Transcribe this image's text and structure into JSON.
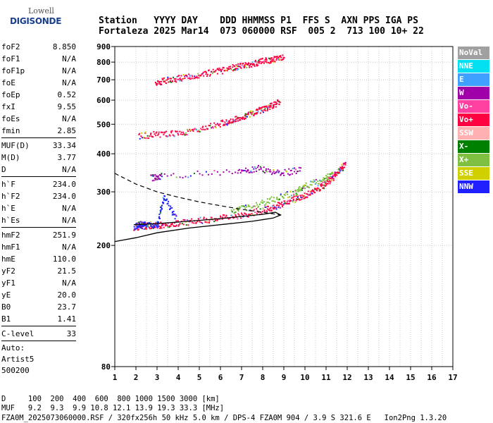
{
  "logo": {
    "line1": "Lowell",
    "line2": "DIGISONDE"
  },
  "header": {
    "labels": "Station   YYYY DAY    DDD HHMMSS P1  FFS S  AXN PPS IGA PS",
    "values": "Fortaleza 2025 Mar14  073 060000 RSF  005 2  713 100 10+ 22"
  },
  "params": {
    "group1": [
      {
        "label": "foF2",
        "value": "8.850"
      },
      {
        "label": "foF1",
        "value": "N/A"
      },
      {
        "label": "foF1p",
        "value": "N/A"
      },
      {
        "label": "foE",
        "value": "N/A"
      },
      {
        "label": "foEp",
        "value": "0.52"
      },
      {
        "label": "fxI",
        "value": "9.55"
      },
      {
        "label": "foEs",
        "value": "N/A"
      },
      {
        "label": "fmin",
        "value": "2.85"
      }
    ],
    "group2": [
      {
        "label": "MUF(D)",
        "value": "33.34"
      },
      {
        "label": "M(D)",
        "value": "3.77"
      },
      {
        "label": "D",
        "value": "N/A"
      }
    ],
    "group3": [
      {
        "label": "h`F",
        "value": "234.0"
      },
      {
        "label": "h`F2",
        "value": "234.0"
      },
      {
        "label": "h`E",
        "value": "N/A"
      },
      {
        "label": "h`Es",
        "value": "N/A"
      }
    ],
    "group4": [
      {
        "label": "hmF2",
        "value": "251.9"
      },
      {
        "label": "hmF1",
        "value": "N/A"
      },
      {
        "label": "hmE",
        "value": "110.0"
      },
      {
        "label": "yF2",
        "value": "21.5"
      },
      {
        "label": "yF1",
        "value": "N/A"
      },
      {
        "label": "yE",
        "value": "20.0"
      },
      {
        "label": "B0",
        "value": "23.7"
      },
      {
        "label": "B1",
        "value": "1.41"
      }
    ],
    "group5": [
      {
        "label": "C-level",
        "value": "33"
      }
    ],
    "auto_label": "Auto:",
    "auto_program": "Artist5",
    "auto_version": "500200"
  },
  "legend": [
    {
      "label": "NoVal",
      "color": "#a0a0a0"
    },
    {
      "label": "NNE",
      "color": "#00e0f0"
    },
    {
      "label": "E",
      "color": "#3fa0ff"
    },
    {
      "label": "W",
      "color": "#a000a8"
    },
    {
      "label": "Vo-",
      "color": "#ff40a0"
    },
    {
      "label": "Vo+",
      "color": "#ff0040"
    },
    {
      "label": "SSW",
      "color": "#ffb0b0"
    },
    {
      "label": "X-",
      "color": "#008000"
    },
    {
      "label": "X+",
      "color": "#80c040"
    },
    {
      "label": "SSE",
      "color": "#d0d000"
    },
    {
      "label": "NNW",
      "color": "#2020ff"
    }
  ],
  "footer": {
    "d_line": "D     100  200  400  600  800 1000 1500 3000 [km]",
    "muf_line": "MUF   9.2  9.3  9.9 10.8 12.1 13.9 19.3 33.3 [MHz]",
    "file_line": "FZA0M_2025073060000.RSF / 320fx256h 50 kHz 5.0 km / DPS-4 FZA0M 904 / 3.9 S 321.6 E   Ion2Png 1.3.20"
  },
  "chart_data": {
    "type": "scatter",
    "x_ticks": [
      "1",
      "2",
      "3",
      "4",
      "5",
      "6",
      "7",
      "8",
      "9",
      "10",
      "11",
      "12",
      "13",
      "14",
      "15",
      "16",
      "17"
    ],
    "y_ticks": [
      {
        "value": 900,
        "label": "900"
      },
      {
        "value": 800,
        "label": "800"
      },
      {
        "value": 700,
        "label": "700"
      },
      {
        "value": 600,
        "label": "600"
      },
      {
        "value": 500,
        "label": "500"
      },
      {
        "value": 400,
        "label": "400"
      },
      {
        "value": 300,
        "label": "300"
      },
      {
        "value": 200,
        "label": "200"
      },
      {
        "value": 80,
        "label": "80"
      }
    ],
    "xlim": [
      1,
      17
    ],
    "ylim": [
      80,
      900
    ],
    "y_scale": "log",
    "grid": true,
    "traces": [
      {
        "name": "F2 o-trace",
        "color": "#ff0040",
        "points": [
          [
            1.9,
            230
          ],
          [
            2.3,
            232
          ],
          [
            2.8,
            233
          ],
          [
            3.3,
            235
          ],
          [
            4.0,
            238
          ],
          [
            5.0,
            242
          ],
          [
            6.0,
            247
          ],
          [
            7.0,
            253
          ],
          [
            8.0,
            262
          ],
          [
            8.6,
            270
          ],
          [
            9.2,
            280
          ],
          [
            9.8,
            290
          ],
          [
            10.3,
            300
          ],
          [
            10.8,
            315
          ],
          [
            11.2,
            330
          ],
          [
            11.6,
            355
          ],
          [
            11.9,
            370
          ]
        ]
      },
      {
        "name": "F2 o-trace 2nd hop",
        "color": "#ff0040",
        "points": [
          [
            2.1,
            460
          ],
          [
            3.0,
            465
          ],
          [
            4.0,
            470
          ],
          [
            5.0,
            485
          ],
          [
            6.0,
            505
          ],
          [
            6.5,
            515
          ],
          [
            7.0,
            530
          ],
          [
            7.5,
            548
          ],
          [
            8.0,
            562
          ],
          [
            8.4,
            580
          ],
          [
            8.8,
            595
          ]
        ]
      },
      {
        "name": "F2 o-trace 3rd hop",
        "color": "#ff0040",
        "points": [
          [
            2.9,
            690
          ],
          [
            3.5,
            700
          ],
          [
            4.2,
            715
          ],
          [
            5.0,
            730
          ],
          [
            5.8,
            748
          ],
          [
            6.5,
            768
          ],
          [
            7.0,
            780
          ],
          [
            7.5,
            795
          ],
          [
            8.0,
            808
          ],
          [
            8.5,
            822
          ],
          [
            9.0,
            835
          ]
        ]
      },
      {
        "name": "F2 x-trace",
        "color": "#80c040",
        "points": [
          [
            6.5,
            260
          ],
          [
            7.5,
            270
          ],
          [
            8.5,
            285
          ],
          [
            9.5,
            300
          ],
          [
            10.0,
            315
          ],
          [
            10.8,
            330
          ],
          [
            11.3,
            345
          ]
        ]
      },
      {
        "name": "E-region spread",
        "color": "#a000a8",
        "points": [
          [
            2.7,
            335
          ],
          [
            3.2,
            340
          ],
          [
            6.8,
            350
          ],
          [
            7.8,
            360
          ],
          [
            8.8,
            345
          ],
          [
            9.8,
            358
          ]
        ]
      },
      {
        "name": "NNW echoes",
        "color": "#2020ff",
        "points": [
          [
            1.9,
            232
          ],
          [
            2.2,
            235
          ],
          [
            2.5,
            234
          ],
          [
            3.0,
            236
          ],
          [
            3.3,
            290
          ],
          [
            3.9,
            244
          ]
        ]
      }
    ],
    "profile": [
      [
        1.9,
        234
      ],
      [
        3.0,
        236
      ],
      [
        4.5,
        240
      ],
      [
        6.0,
        245
      ],
      [
        7.0,
        249
      ],
      [
        8.0,
        253
      ],
      [
        8.6,
        257
      ],
      [
        8.85,
        251.9
      ],
      [
        8.5,
        246
      ],
      [
        7.5,
        240
      ],
      [
        6.0,
        234
      ],
      [
        4.5,
        228
      ],
      [
        3.0,
        220
      ],
      [
        2.0,
        212
      ],
      [
        1.0,
        206
      ]
    ],
    "profile_top": [
      [
        1.0,
        345
      ],
      [
        2.0,
        318
      ],
      [
        3.0,
        300
      ],
      [
        4.0,
        288
      ],
      [
        5.0,
        278
      ],
      [
        6.0,
        270
      ],
      [
        7.0,
        263
      ],
      [
        8.0,
        257
      ],
      [
        8.85,
        251.9
      ]
    ]
  }
}
